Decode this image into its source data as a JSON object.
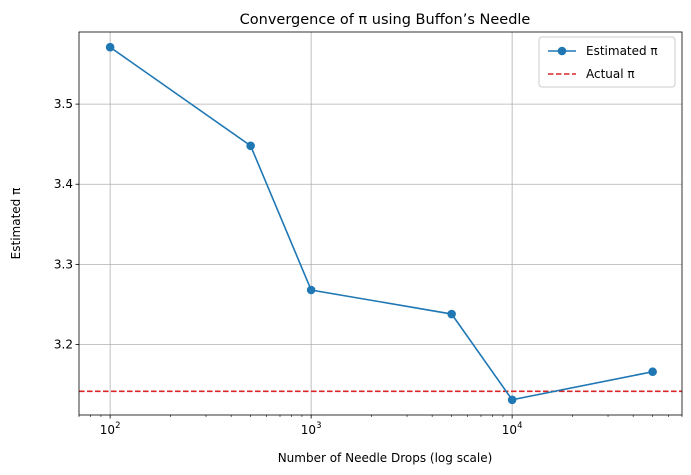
{
  "chart_data": {
    "type": "line",
    "title": "Convergence of π using Buffon’s Needle",
    "xlabel": "Number of Needle Drops (log scale)",
    "ylabel": "Estimated π",
    "x_scale": "log",
    "xlim": [
      70,
      70000
    ],
    "ylim": [
      3.112,
      3.59
    ],
    "x_ticks": [
      {
        "value": 100,
        "base": "10",
        "exp": "2"
      },
      {
        "value": 1000,
        "base": "10",
        "exp": "3"
      },
      {
        "value": 10000,
        "base": "10",
        "exp": "4"
      }
    ],
    "y_ticks": [
      {
        "value": 3.2,
        "label": "3.2"
      },
      {
        "value": 3.3,
        "label": "3.3"
      },
      {
        "value": 3.4,
        "label": "3.4"
      },
      {
        "value": 3.5,
        "label": "3.5"
      }
    ],
    "grid": true,
    "legend_position": "top-right",
    "series": [
      {
        "name": "Estimated π",
        "style": "line-marker",
        "color": "#1f77b4",
        "x": [
          100,
          500,
          1000,
          5000,
          10000,
          50000
        ],
        "y": [
          3.571,
          3.448,
          3.268,
          3.238,
          3.131,
          3.166
        ]
      }
    ],
    "reference_lines": [
      {
        "name": "Actual π",
        "orientation": "horizontal",
        "value": 3.14159,
        "color": "#d62728",
        "style": "dashed"
      }
    ]
  }
}
